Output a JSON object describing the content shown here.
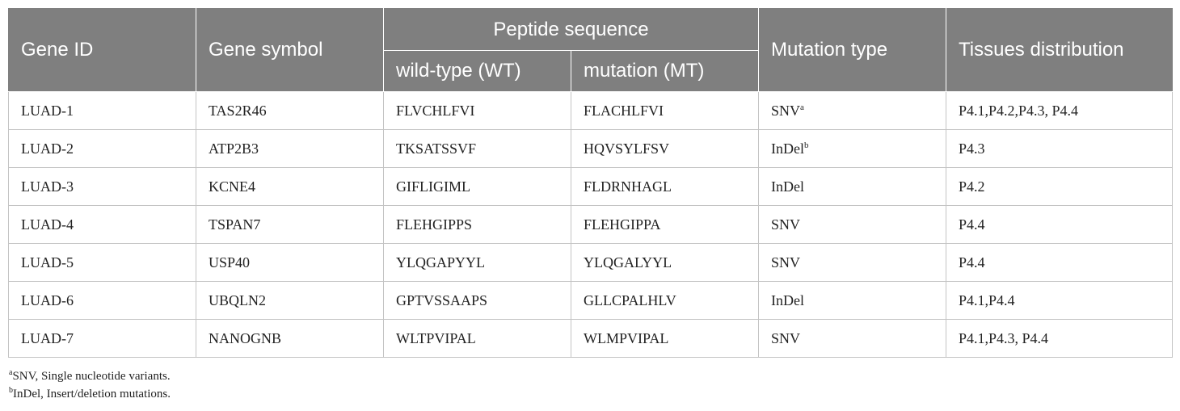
{
  "table": {
    "headers": {
      "gene_id": "Gene ID",
      "gene_symbol": "Gene symbol",
      "peptide_sequence": "Peptide sequence",
      "wild_type": "wild-type (WT)",
      "mutation": "mutation (MT)",
      "mutation_type": "Mutation type",
      "tissues_distribution": "Tissues distribution"
    },
    "rows": [
      {
        "gene_id": "LUAD-1",
        "gene_symbol": "TAS2R46",
        "wt": "FLVCHLFVI",
        "mt": "FLACHLFVI",
        "type": "SNV",
        "type_sup": "a",
        "tissues": "P4.1,P4.2,P4.3, P4.4"
      },
      {
        "gene_id": "LUAD-2",
        "gene_symbol": "ATP2B3",
        "wt": "TKSATSSVF",
        "mt": "HQVSYLFSV",
        "type": "InDel",
        "type_sup": "b",
        "tissues": "P4.3"
      },
      {
        "gene_id": "LUAD-3",
        "gene_symbol": "KCNE4",
        "wt": "GIFLIGIML",
        "mt": "FLDRNHAGL",
        "type": "InDel",
        "type_sup": "",
        "tissues": "P4.2"
      },
      {
        "gene_id": "LUAD-4",
        "gene_symbol": "TSPAN7",
        "wt": "FLEHGIPPS",
        "mt": "FLEHGIPPA",
        "type": "SNV",
        "type_sup": "",
        "tissues": "P4.4"
      },
      {
        "gene_id": "LUAD-5",
        "gene_symbol": "USP40",
        "wt": "YLQGAPYYL",
        "mt": "YLQGALYYL",
        "type": "SNV",
        "type_sup": "",
        "tissues": "P4.4"
      },
      {
        "gene_id": "LUAD-6",
        "gene_symbol": "UBQLN2",
        "wt": "GPTVSSAAPS",
        "mt": "GLLCPALHLV",
        "type": "InDel",
        "type_sup": "",
        "tissues": "P4.1,P4.4"
      },
      {
        "gene_id": "LUAD-7",
        "gene_symbol": "NANOGNB",
        "wt": "WLTPVIPAL",
        "mt": "WLMPVIPAL",
        "type": "SNV",
        "type_sup": "",
        "tissues": "P4.1,P4.3, P4.4"
      }
    ]
  },
  "footnotes": [
    {
      "mark": "a",
      "text": "SNV, Single nucleotide variants."
    },
    {
      "mark": "b",
      "text": "InDel, Insert/deletion mutations."
    }
  ],
  "colors": {
    "header_bg": "#7f7f7f",
    "header_text": "#ffffff",
    "grid": "#c4c4c4"
  }
}
